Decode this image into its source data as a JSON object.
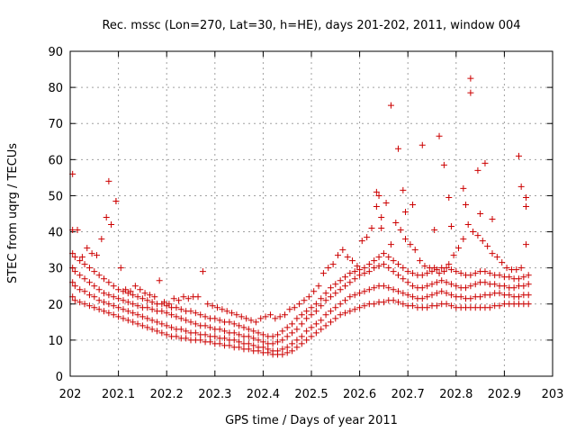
{
  "chart_data": {
    "type": "scatter",
    "title": "Rec. mssc (Lon=270, Lat=30, h=HE), days 201-202, 2011, window 004",
    "xlabel": "GPS time / Days of year 2011",
    "ylabel": "STEC from uqrg / TECUs",
    "xlim": [
      202,
      203
    ],
    "ylim": [
      0,
      90
    ],
    "xticks": [
      "202",
      "202.1",
      "202.2",
      "202.3",
      "202.4",
      "202.5",
      "202.6",
      "202.7",
      "202.8",
      "202.9",
      "203"
    ],
    "yticks": [
      "0",
      "10",
      "20",
      "30",
      "40",
      "50",
      "60",
      "70",
      "80",
      "90"
    ],
    "grid": true,
    "marker": "+",
    "color": "#cc0000",
    "series": [
      {
        "x": [
          202.005,
          202.01,
          202.02,
          202.03,
          202.04,
          202.05,
          202.06,
          202.07,
          202.08,
          202.09,
          202.1,
          202.11,
          202.12,
          202.13,
          202.14,
          202.15,
          202.16,
          202.17,
          202.18,
          202.19,
          202.2,
          202.21,
          202.22,
          202.23,
          202.24,
          202.25,
          202.26,
          202.27,
          202.28,
          202.29,
          202.3,
          202.31,
          202.32,
          202.33,
          202.34,
          202.35,
          202.36,
          202.37,
          202.38,
          202.39,
          202.4,
          202.41,
          202.42,
          202.43,
          202.44,
          202.45,
          202.46,
          202.47,
          202.48,
          202.49,
          202.5,
          202.51,
          202.52,
          202.53,
          202.54,
          202.55,
          202.56,
          202.57,
          202.58,
          202.59,
          202.6,
          202.61,
          202.62,
          202.63,
          202.64,
          202.65,
          202.66,
          202.67,
          202.68,
          202.69,
          202.7,
          202.71,
          202.72,
          202.73,
          202.74,
          202.75,
          202.76,
          202.77,
          202.78,
          202.79,
          202.8,
          202.81,
          202.82,
          202.83,
          202.84,
          202.85,
          202.86,
          202.87,
          202.88,
          202.89,
          202.9,
          202.91,
          202.92,
          202.93,
          202.94,
          202.95
        ],
        "y": [
          22,
          21,
          20.5,
          20,
          19.5,
          19,
          18.5,
          18,
          17.5,
          17,
          16.5,
          16,
          15.5,
          15,
          14.5,
          14,
          13.5,
          13,
          12.5,
          12,
          11.5,
          11,
          11,
          10.5,
          10.5,
          10,
          10,
          10,
          9.5,
          9.5,
          9,
          9,
          8.5,
          8.5,
          8,
          8,
          7.5,
          7.5,
          7,
          7,
          6.5,
          6.5,
          6,
          6,
          6,
          6.5,
          7,
          8,
          9,
          10,
          11,
          12,
          13,
          14,
          15,
          16,
          17,
          17.5,
          18,
          18.5,
          19,
          19.5,
          20,
          20,
          20.5,
          20.5,
          21,
          21,
          20.5,
          20,
          19.5,
          19.5,
          19,
          19,
          19,
          19.5,
          19.5,
          20,
          20,
          19.5,
          19,
          19,
          19,
          19,
          19,
          19,
          19,
          19,
          19.5,
          19.5,
          20,
          20,
          20,
          20,
          20,
          20
        ]
      },
      {
        "x": [
          202.005,
          202.01,
          202.02,
          202.03,
          202.04,
          202.05,
          202.06,
          202.07,
          202.08,
          202.09,
          202.1,
          202.11,
          202.12,
          202.13,
          202.14,
          202.15,
          202.16,
          202.17,
          202.18,
          202.19,
          202.2,
          202.21,
          202.22,
          202.23,
          202.24,
          202.25,
          202.26,
          202.27,
          202.28,
          202.29,
          202.3,
          202.31,
          202.32,
          202.33,
          202.34,
          202.35,
          202.36,
          202.37,
          202.38,
          202.39,
          202.4,
          202.41,
          202.42,
          202.43,
          202.44,
          202.45,
          202.46,
          202.47,
          202.48,
          202.49,
          202.5,
          202.51,
          202.52,
          202.53,
          202.54,
          202.55,
          202.56,
          202.57,
          202.58,
          202.59,
          202.6,
          202.61,
          202.62,
          202.63,
          202.64,
          202.65,
          202.66,
          202.67,
          202.68,
          202.69,
          202.7,
          202.71,
          202.72,
          202.73,
          202.74,
          202.75,
          202.76,
          202.77,
          202.78,
          202.79,
          202.8,
          202.81,
          202.82,
          202.83,
          202.84,
          202.85,
          202.86,
          202.87,
          202.88,
          202.89,
          202.9,
          202.91,
          202.92,
          202.93,
          202.94,
          202.95
        ],
        "y": [
          26,
          25,
          24,
          23.5,
          22.5,
          22,
          21,
          20.5,
          20,
          19.5,
          19,
          18.5,
          18,
          17.5,
          17,
          16.5,
          16,
          15.5,
          15,
          14.5,
          14,
          13.5,
          13,
          13,
          12.5,
          12,
          12,
          11.5,
          11.5,
          11,
          11,
          10.5,
          10.5,
          10,
          10,
          9.5,
          9,
          9,
          8.5,
          8,
          8,
          7.5,
          7,
          7,
          7.5,
          8,
          9,
          10,
          11,
          12.5,
          13.5,
          14.5,
          15.5,
          17,
          18,
          19,
          20,
          21,
          22,
          22.5,
          23,
          23.5,
          24,
          24.5,
          25,
          25,
          24.5,
          24,
          23.5,
          23,
          22.5,
          22,
          21.5,
          21.5,
          22,
          22.5,
          23,
          23.5,
          23,
          22.5,
          22,
          22,
          21.5,
          21.5,
          22,
          22,
          22.5,
          22.5,
          23,
          23,
          22.5,
          22.5,
          22,
          22,
          22.5,
          22.5
        ]
      },
      {
        "x": [
          202.005,
          202.01,
          202.02,
          202.03,
          202.04,
          202.05,
          202.06,
          202.07,
          202.08,
          202.09,
          202.1,
          202.11,
          202.12,
          202.13,
          202.14,
          202.15,
          202.16,
          202.17,
          202.18,
          202.19,
          202.2,
          202.21,
          202.22,
          202.23,
          202.24,
          202.25,
          202.26,
          202.27,
          202.28,
          202.29,
          202.3,
          202.31,
          202.32,
          202.33,
          202.34,
          202.35,
          202.36,
          202.37,
          202.38,
          202.39,
          202.4,
          202.41,
          202.42,
          202.43,
          202.44,
          202.45,
          202.46,
          202.47,
          202.48,
          202.49,
          202.5,
          202.51,
          202.52,
          202.53,
          202.54,
          202.55,
          202.56,
          202.57,
          202.58,
          202.59,
          202.6,
          202.61,
          202.62,
          202.63,
          202.64,
          202.65,
          202.66,
          202.67,
          202.68,
          202.69,
          202.7,
          202.71,
          202.72,
          202.73,
          202.74,
          202.75,
          202.76,
          202.77,
          202.78,
          202.79,
          202.8,
          202.81,
          202.82,
          202.83,
          202.84,
          202.85,
          202.86,
          202.87,
          202.88,
          202.89,
          202.9,
          202.91,
          202.92,
          202.93,
          202.94,
          202.95
        ],
        "y": [
          30,
          29,
          28,
          27,
          26,
          25,
          24,
          23,
          22.5,
          22,
          21.5,
          21,
          20.5,
          20,
          19.5,
          19,
          19,
          18.5,
          18,
          18,
          17.5,
          17,
          16.5,
          16,
          15.5,
          15,
          14.5,
          14,
          14,
          13.5,
          13,
          13,
          12.5,
          12,
          12,
          11.5,
          11,
          11,
          10.5,
          10,
          9.5,
          9,
          9,
          9.5,
          10,
          11,
          12,
          13,
          14.5,
          16,
          17,
          18,
          19.5,
          21,
          22,
          23,
          24,
          25,
          26,
          27,
          28,
          28.5,
          29,
          30,
          30.5,
          31,
          30,
          29,
          28,
          27,
          26,
          25,
          24.5,
          24.5,
          25,
          25.5,
          26,
          26.5,
          26,
          25.5,
          25,
          24.5,
          24.5,
          25,
          25.5,
          26,
          26,
          25.5,
          25.5,
          25,
          25,
          24.5,
          24.5,
          25,
          25,
          25.5
        ]
      },
      {
        "x": [
          202.005,
          202.01,
          202.02,
          202.03,
          202.04,
          202.05,
          202.06,
          202.07,
          202.08,
          202.09,
          202.1,
          202.11,
          202.12,
          202.13,
          202.14,
          202.15,
          202.16,
          202.17,
          202.18,
          202.19,
          202.2,
          202.21,
          202.22,
          202.23,
          202.24,
          202.25,
          202.26,
          202.27,
          202.28,
          202.29,
          202.3,
          202.31,
          202.32,
          202.33,
          202.34,
          202.35,
          202.36,
          202.37,
          202.38,
          202.39,
          202.4,
          202.41,
          202.42,
          202.43,
          202.44,
          202.45,
          202.46,
          202.47,
          202.48,
          202.49,
          202.5,
          202.51,
          202.52,
          202.53,
          202.54,
          202.55,
          202.56,
          202.57,
          202.58,
          202.59,
          202.6,
          202.61,
          202.62,
          202.63,
          202.64,
          202.65,
          202.66,
          202.67,
          202.68,
          202.69,
          202.7,
          202.71,
          202.72,
          202.73,
          202.74,
          202.75,
          202.76,
          202.77,
          202.78,
          202.79,
          202.8,
          202.81,
          202.82,
          202.83,
          202.84,
          202.85,
          202.86,
          202.87,
          202.88,
          202.89,
          202.9,
          202.91,
          202.92,
          202.93,
          202.94,
          202.95
        ],
        "y": [
          34,
          33,
          32,
          31,
          30,
          29,
          28,
          27,
          26,
          25,
          24,
          23.5,
          23,
          22.5,
          22,
          21.5,
          21,
          20.5,
          20,
          20,
          19.5,
          19,
          19,
          18.5,
          18,
          18,
          17.5,
          17,
          16.5,
          16,
          16,
          15.5,
          15,
          15,
          14.5,
          14,
          13.5,
          13,
          12.5,
          12,
          11.5,
          11,
          11,
          11.5,
          12.5,
          13.5,
          14.5,
          16,
          17,
          18,
          19,
          20,
          21.5,
          23,
          24.5,
          25.5,
          26.5,
          27.5,
          28.5,
          29,
          29.5,
          30,
          31,
          32,
          33,
          34,
          33,
          32,
          31,
          30,
          29,
          28.5,
          28,
          28,
          28.5,
          29,
          29.5,
          30,
          30,
          29.5,
          29,
          28.5,
          28,
          28,
          28.5,
          29,
          29,
          28.5,
          28,
          28,
          27.5,
          27.5,
          27,
          27,
          27.5,
          28
        ]
      },
      {
        "x": [
          202.005,
          202.015,
          202.025,
          202.035,
          202.045,
          202.055,
          202.065,
          202.075,
          202.085,
          202.095,
          202.105,
          202.115,
          202.125,
          202.135,
          202.145,
          202.155,
          202.165,
          202.175,
          202.185,
          202.195,
          202.205,
          202.215,
          202.225,
          202.235,
          202.245,
          202.255,
          202.265,
          202.275,
          202.285,
          202.295,
          202.305,
          202.315,
          202.325,
          202.335,
          202.345,
          202.355,
          202.365,
          202.375,
          202.385,
          202.395,
          202.405,
          202.415,
          202.425,
          202.435,
          202.445,
          202.455,
          202.465,
          202.475,
          202.485,
          202.495,
          202.505,
          202.515,
          202.525,
          202.535,
          202.545,
          202.555,
          202.565,
          202.575,
          202.585,
          202.595,
          202.605,
          202.615,
          202.625,
          202.635,
          202.645,
          202.655,
          202.665,
          202.675,
          202.685,
          202.695,
          202.705,
          202.715,
          202.725,
          202.735,
          202.745,
          202.755,
          202.765,
          202.775,
          202.785,
          202.795,
          202.805,
          202.815,
          202.825,
          202.835,
          202.845,
          202.855,
          202.865,
          202.875,
          202.885,
          202.895,
          202.905,
          202.915,
          202.925,
          202.935,
          202.945
        ],
        "y": [
          40.5,
          40.5,
          33,
          35.5,
          34,
          33.5,
          38,
          44,
          42,
          48.5,
          30,
          24,
          23.5,
          25,
          24,
          23,
          22.5,
          22,
          26.5,
          20.5,
          20,
          21.5,
          21,
          22,
          21.5,
          22,
          22,
          29,
          20,
          19.5,
          19,
          18.5,
          18,
          17.5,
          17,
          16.5,
          16,
          15.5,
          15,
          16,
          16.5,
          17,
          16,
          16.5,
          17,
          18.5,
          19,
          20,
          21,
          22,
          23.5,
          25,
          28.5,
          30,
          31,
          33.5,
          35,
          33,
          32,
          30.5,
          37.5,
          38.5,
          41,
          47,
          44,
          48,
          36.5,
          42.5,
          40.5,
          38,
          36.5,
          35,
          32,
          30.5,
          30,
          30,
          28.5,
          29,
          31,
          33.5,
          35.5,
          38,
          42,
          40,
          39,
          37.5,
          36,
          34,
          33,
          31.5,
          30,
          29.5,
          29.5,
          30,
          36.5
        ]
      },
      {
        "x": [
          202.005,
          202.08,
          202.095,
          202.635,
          202.665,
          202.68,
          202.69,
          202.71,
          202.73,
          202.765,
          202.775,
          202.785,
          202.815,
          202.83,
          202.83,
          202.845,
          202.86,
          202.93,
          202.935,
          202.945,
          202.945,
          202.64,
          202.645,
          202.695,
          202.755,
          202.79,
          202.82,
          202.85,
          202.875
        ],
        "y": [
          56,
          54,
          48.5,
          51,
          75,
          63,
          51.5,
          47.5,
          64,
          66.5,
          58.5,
          49.5,
          52,
          82.5,
          78.5,
          57,
          59,
          61,
          52.5,
          49.5,
          47,
          50,
          41,
          45.5,
          40.5,
          41.5,
          47.5,
          45,
          43.5
        ]
      }
    ]
  }
}
